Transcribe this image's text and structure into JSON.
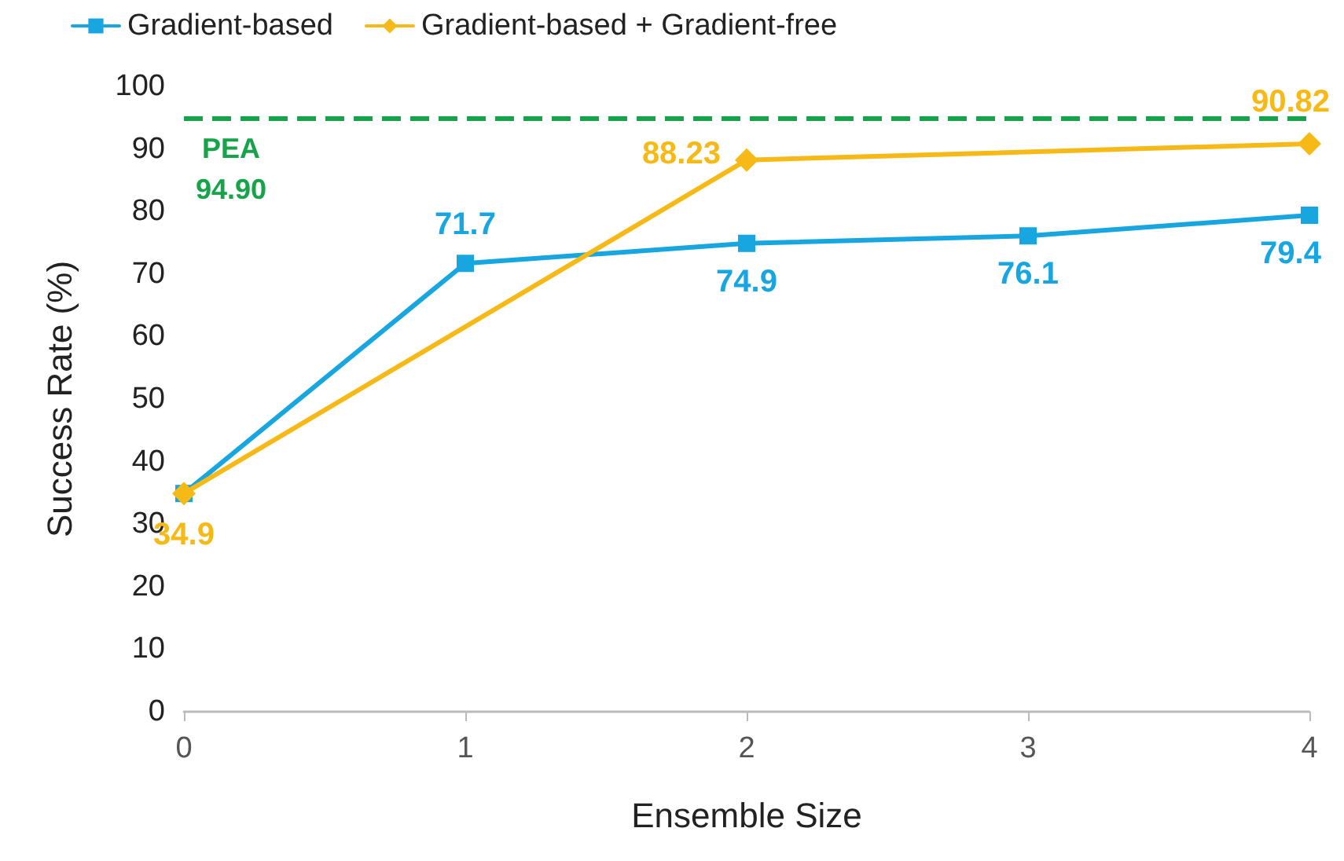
{
  "chart_data": {
    "type": "line",
    "xlabel": "Ensemble Size",
    "ylabel": "Success Rate (%)",
    "xlim": [
      0,
      4
    ],
    "xticks": [
      0,
      1,
      2,
      3,
      4
    ],
    "ylim": [
      0,
      100
    ],
    "yticks": [
      0,
      10,
      20,
      30,
      40,
      50,
      60,
      70,
      80,
      90,
      100
    ],
    "grid": false,
    "legend": "top left",
    "line_style": "solid",
    "series": [
      {
        "name": "Gradient-based",
        "color": "#17a6df",
        "marker": "square",
        "x": [
          0,
          1,
          2,
          3,
          4
        ],
        "values": [
          34.9,
          71.7,
          74.9,
          76.1,
          79.4
        ],
        "value_labels": [
          null,
          "71.7",
          "74.9",
          "76.1",
          "79.4"
        ]
      },
      {
        "name": "Gradient-based + Gradient-free",
        "color": "#f7b916",
        "marker": "diamond",
        "x": [
          0,
          2,
          4
        ],
        "values": [
          34.9,
          88.23,
          90.82
        ],
        "value_labels": [
          "34.9",
          "88.23",
          "90.82"
        ]
      }
    ],
    "ref_lines": [
      {
        "axis": "y",
        "value": 94.9,
        "label": "PEA\n94.90",
        "color": "#16a34a",
        "line_style": "dashed"
      }
    ]
  }
}
